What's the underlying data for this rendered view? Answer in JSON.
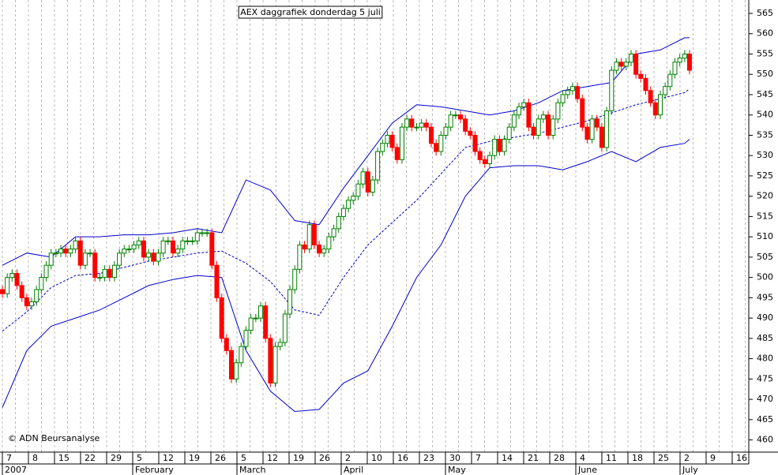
{
  "chart_data": {
    "type": "candlestick",
    "title": "AEX daggrafiek donderdag 5 juli",
    "credit": "© ADN Beursanalyse",
    "categories": [
      "7",
      "8",
      "15",
      "22",
      "29",
      "5",
      "12",
      "19",
      "26",
      "5",
      "12",
      "19",
      "26",
      "2",
      "10",
      "16",
      "23",
      "30",
      "7",
      "14",
      "21",
      "28",
      "4",
      "11",
      "18",
      "25",
      "2",
      "9",
      "16"
    ],
    "month_labels": [
      "2007",
      null,
      null,
      null,
      null,
      "February",
      null,
      null,
      null,
      "March",
      null,
      null,
      null,
      "April",
      null,
      null,
      null,
      "May",
      null,
      null,
      null,
      null,
      "June",
      null,
      null,
      null,
      "July",
      null,
      null
    ],
    "open": [
      497,
      496,
      500,
      501,
      498,
      495,
      493,
      494,
      497,
      500,
      503,
      506,
      506,
      507,
      506,
      507,
      509,
      503,
      506,
      506,
      500,
      500,
      502,
      500,
      503,
      506,
      507,
      507,
      508,
      509,
      505,
      506,
      504,
      506,
      509,
      509,
      506,
      507,
      509,
      509,
      509,
      511,
      511,
      511,
      503,
      495,
      485,
      482,
      475,
      479,
      483,
      487,
      490,
      490,
      493,
      485,
      474,
      483,
      484,
      491,
      497,
      502,
      508,
      507,
      513,
      508,
      506,
      507,
      510,
      512,
      515,
      517,
      519,
      520,
      523,
      526,
      521,
      524,
      531,
      533,
      535,
      532,
      529,
      537,
      539,
      537,
      537,
      538,
      537,
      533,
      531,
      535,
      537,
      540,
      540,
      539,
      536,
      535,
      531,
      529,
      528,
      530,
      534,
      531,
      534,
      537,
      540,
      542,
      543,
      537,
      535,
      539,
      540,
      535,
      539,
      543,
      545,
      546,
      547,
      544,
      537,
      534,
      539,
      537,
      532,
      541,
      551,
      553,
      552,
      553,
      555,
      550,
      549,
      546,
      543,
      540,
      545,
      547,
      550,
      553,
      554,
      555
    ],
    "high": [
      498,
      501,
      502,
      502,
      499,
      496,
      495,
      498,
      501,
      504,
      507,
      507,
      508,
      508,
      508,
      510,
      510,
      507,
      507,
      507,
      501,
      503,
      503,
      504,
      507,
      508,
      508,
      509,
      510,
      510,
      507,
      507,
      507,
      510,
      510,
      510,
      508,
      510,
      510,
      510,
      512,
      512,
      512,
      512,
      504,
      496,
      486,
      483,
      480,
      484,
      488,
      491,
      491,
      494,
      494,
      486,
      484,
      485,
      492,
      498,
      503,
      509,
      509,
      514,
      514,
      509,
      508,
      511,
      513,
      516,
      518,
      520,
      521,
      524,
      527,
      527,
      525,
      532,
      534,
      536,
      536,
      533,
      538,
      540,
      540,
      538,
      539,
      539,
      538,
      534,
      536,
      538,
      541,
      541,
      541,
      540,
      537,
      536,
      532,
      530,
      531,
      535,
      535,
      535,
      538,
      541,
      543,
      544,
      544,
      538,
      540,
      541,
      541,
      540,
      544,
      546,
      547,
      548,
      548,
      545,
      538,
      540,
      540,
      538,
      542,
      552,
      554,
      554,
      554,
      556,
      556,
      551,
      550,
      547,
      544,
      546,
      548,
      551,
      554,
      555,
      556,
      556
    ],
    "low": [
      495,
      495,
      499,
      497,
      494,
      492,
      492,
      493,
      496,
      499,
      502,
      505,
      505,
      505,
      505,
      506,
      502,
      502,
      505,
      499,
      499,
      499,
      499,
      499,
      502,
      505,
      506,
      506,
      507,
      504,
      504,
      503,
      503,
      505,
      508,
      505,
      505,
      506,
      508,
      508,
      508,
      510,
      510,
      502,
      494,
      484,
      481,
      474,
      474,
      478,
      482,
      486,
      489,
      489,
      484,
      473,
      473,
      482,
      483,
      490,
      496,
      501,
      506,
      506,
      507,
      505,
      505,
      506,
      509,
      511,
      514,
      516,
      518,
      519,
      522,
      520,
      520,
      523,
      530,
      532,
      531,
      528,
      528,
      536,
      536,
      536,
      536,
      536,
      532,
      530,
      530,
      534,
      536,
      539,
      538,
      535,
      534,
      530,
      528,
      527,
      527,
      529,
      530,
      530,
      533,
      536,
      539,
      541,
      536,
      534,
      534,
      538,
      534,
      534,
      538,
      542,
      544,
      545,
      543,
      536,
      533,
      533,
      536,
      531,
      531,
      540,
      550,
      551,
      551,
      552,
      549,
      548,
      545,
      542,
      539,
      539,
      544,
      546,
      549,
      552,
      553,
      550
    ],
    "close": [
      496,
      500,
      501,
      498,
      495,
      493,
      494,
      497,
      500,
      503,
      506,
      506,
      507,
      506,
      507,
      509,
      503,
      506,
      506,
      500,
      500,
      502,
      500,
      503,
      506,
      507,
      507,
      508,
      509,
      505,
      506,
      504,
      506,
      509,
      509,
      506,
      507,
      509,
      509,
      509,
      511,
      511,
      511,
      503,
      495,
      485,
      482,
      475,
      479,
      483,
      487,
      490,
      490,
      493,
      485,
      474,
      483,
      484,
      491,
      497,
      502,
      508,
      507,
      513,
      508,
      506,
      507,
      510,
      512,
      515,
      517,
      519,
      520,
      523,
      526,
      521,
      524,
      531,
      533,
      535,
      532,
      529,
      537,
      539,
      537,
      537,
      538,
      537,
      533,
      531,
      535,
      537,
      540,
      540,
      539,
      536,
      535,
      531,
      529,
      528,
      530,
      534,
      531,
      534,
      537,
      540,
      542,
      543,
      537,
      535,
      539,
      540,
      535,
      539,
      543,
      545,
      546,
      547,
      544,
      537,
      534,
      539,
      537,
      532,
      541,
      551,
      553,
      552,
      553,
      555,
      550,
      549,
      546,
      543,
      540,
      545,
      547,
      550,
      553,
      554,
      555,
      551
    ],
    "up_color": "#008000",
    "down_color": "#ff0000",
    "bands": {
      "x": [
        0,
        5,
        10,
        15,
        20,
        25,
        30,
        35,
        40,
        45,
        50,
        55,
        60,
        65,
        70,
        75,
        80,
        85,
        90,
        95,
        100,
        105,
        110,
        115,
        120,
        125,
        130,
        135,
        140,
        141
      ],
      "color": "#0000cc",
      "upper": [
        503,
        506,
        505,
        510,
        510,
        510.5,
        510.5,
        511,
        512,
        511,
        524,
        521.5,
        514,
        513,
        522,
        530,
        538,
        542.5,
        542,
        541,
        540,
        541,
        543,
        546,
        547,
        548,
        555,
        556,
        559,
        559
      ],
      "middle": [
        486.8,
        491.5,
        497.5,
        500.5,
        501,
        502.5,
        504,
        505,
        506,
        506.5,
        503.5,
        499,
        492,
        490.7,
        500,
        508,
        513.5,
        519,
        525.5,
        532,
        533.5,
        534.5,
        535.5,
        537,
        538.5,
        540.5,
        542.5,
        544,
        545.5,
        546.4
      ],
      "lower": [
        468,
        482,
        488,
        490,
        492,
        495,
        498,
        499.5,
        500.5,
        500,
        482,
        472,
        467,
        467.5,
        474,
        477,
        488,
        500,
        508,
        520,
        527,
        527.5,
        527.5,
        526.5,
        528.5,
        531,
        528.5,
        532,
        533,
        534
      ]
    },
    "ylim": [
      457,
      568.3
    ],
    "yticks": [
      460,
      465,
      470,
      475,
      480,
      485,
      490,
      495,
      500,
      505,
      510,
      515,
      520,
      525,
      530,
      535,
      540,
      545,
      550,
      555,
      560,
      565
    ]
  }
}
